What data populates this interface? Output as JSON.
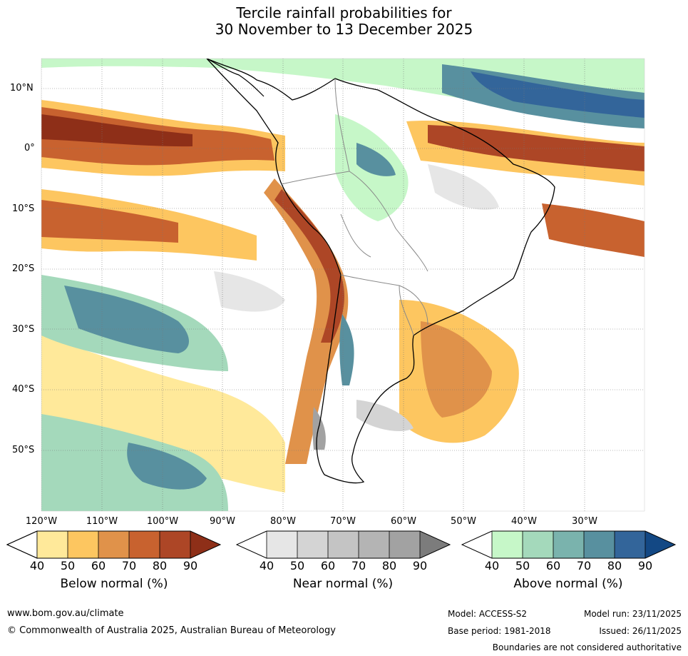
{
  "title": {
    "line1": "Tercile rainfall probabilities for",
    "line2": "30 November to 13 December 2025"
  },
  "latitude_labels": [
    "10°N",
    "0°",
    "10°S",
    "20°S",
    "30°S",
    "40°S",
    "50°S"
  ],
  "longitude_labels": [
    "120°W",
    "110°W",
    "100°W",
    "90°W",
    "80°W",
    "70°W",
    "60°W",
    "50°W",
    "40°W",
    "30°W"
  ],
  "colorbars": [
    {
      "label": "Below normal (%)",
      "ticks": [
        "40",
        "50",
        "60",
        "70",
        "80",
        "90"
      ],
      "colors": [
        "#ffe99a",
        "#fdc660",
        "#e0924a",
        "#c8622f",
        "#ad4626",
        "#8e2f18"
      ]
    },
    {
      "label": "Near normal (%)",
      "ticks": [
        "40",
        "50",
        "60",
        "70",
        "80",
        "90"
      ],
      "colors": [
        "#e6e6e6",
        "#d4d4d4",
        "#c4c4c4",
        "#b4b4b4",
        "#a2a2a2",
        "#7c7c7c"
      ]
    },
    {
      "label": "Above normal (%)",
      "ticks": [
        "40",
        "50",
        "60",
        "70",
        "80",
        "90"
      ],
      "colors": [
        "#c6f7c8",
        "#a4d9bb",
        "#7ab3ad",
        "#58909f",
        "#33659a",
        "#134884"
      ]
    }
  ],
  "footer": {
    "website": "www.bom.gov.au/climate",
    "copyright": "© Commonwealth of Australia 2025, Australian Bureau of Meteorology",
    "model": "Model: ACCESS-S2",
    "base_period": "Base period: 1981-2018",
    "model_run": "Model run: 23/11/2025",
    "issued": "Issued: 26/11/2025",
    "disclaimer": "Boundaries are not considered authoritative"
  }
}
